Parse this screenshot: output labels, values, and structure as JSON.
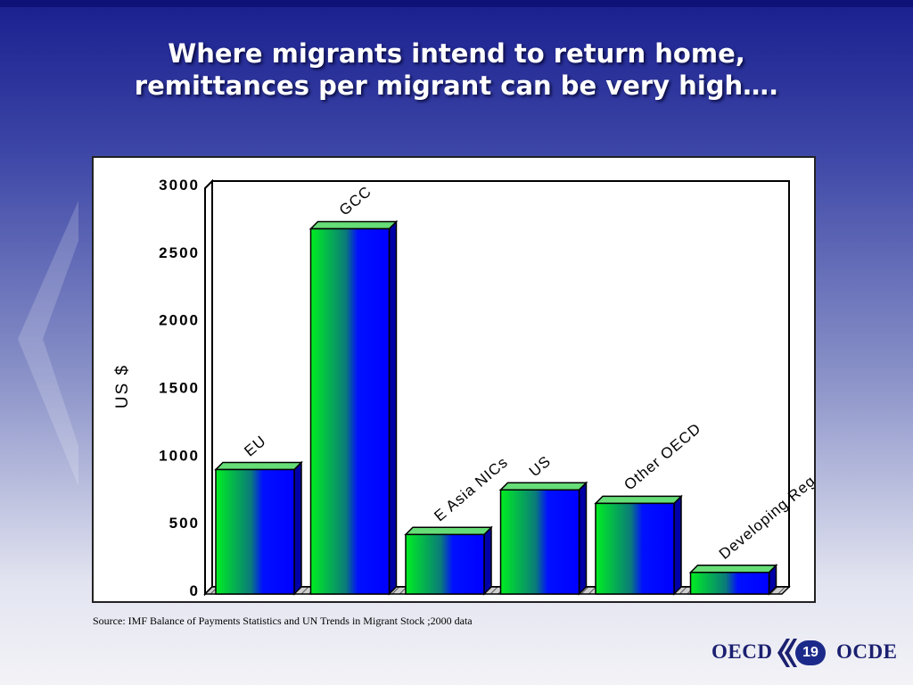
{
  "slide": {
    "title_line1": "Where migrants intend to return home,",
    "title_line2": "remittances per migrant can be very high….",
    "source": "Source: IMF Balance of Payments Statistics and UN Trends in Migrant Stock ;2000 data",
    "page_number": "19",
    "logo_left": "OECD",
    "logo_right": "OCDE"
  },
  "colors": {
    "bar_left": "#00ee22",
    "bar_right": "#0000ff",
    "bar_top": "#66dd77",
    "bar_side": "#0000a8"
  },
  "chart_data": {
    "type": "bar",
    "title": "",
    "xlabel": "",
    "ylabel": "US $",
    "ylim": [
      0,
      3000
    ],
    "yticks": [
      "0",
      "500",
      "1000",
      "1500",
      "2000",
      "2500",
      "3000"
    ],
    "categories": [
      "EU",
      "GCC",
      "E Asia NICs",
      "US",
      "Other OECD",
      "Developing Reg."
    ],
    "values": [
      920,
      2700,
      440,
      770,
      670,
      160
    ],
    "grid": false,
    "legend": "none"
  }
}
